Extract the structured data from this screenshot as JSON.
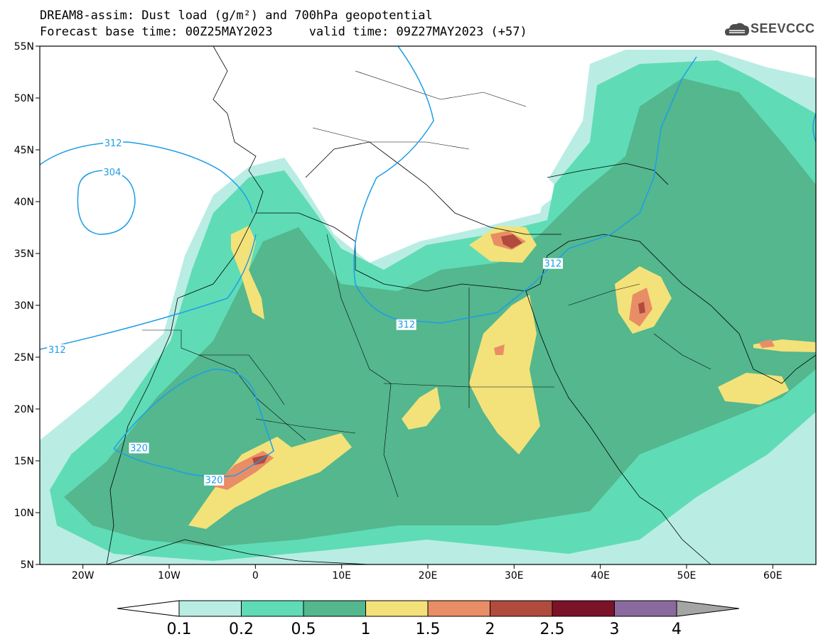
{
  "title": {
    "line1": "DREAM8-assim: Dust load (g/m²) and 700hPa geopotential",
    "line2": "Forecast base time: 00Z25MAY2023     valid time: 09Z27MAY2023 (+57)"
  },
  "logo": {
    "text": "SEEVCCC",
    "icon": "cloud-icon"
  },
  "axes": {
    "x_ticks": [
      "20W",
      "10W",
      "0",
      "10E",
      "20E",
      "30E",
      "40E",
      "50E",
      "60E"
    ],
    "x_tick_values": [
      -20,
      -10,
      0,
      10,
      20,
      30,
      40,
      50,
      60
    ],
    "y_ticks": [
      "55N",
      "50N",
      "45N",
      "40N",
      "35N",
      "30N",
      "25N",
      "20N",
      "15N",
      "10N",
      "5N"
    ],
    "y_tick_values": [
      55,
      50,
      45,
      40,
      35,
      30,
      25,
      20,
      15,
      10,
      5
    ],
    "lon_range": [
      -25,
      65
    ],
    "lat_range": [
      5,
      55
    ]
  },
  "colorbar": {
    "labels": [
      "0.1",
      "0.2",
      "0.5",
      "1",
      "1.5",
      "2",
      "2.5",
      "3",
      "4"
    ],
    "colors": [
      "#b9ede4",
      "#5fdcb5",
      "#54b78e",
      "#f3e27a",
      "#e98d66",
      "#b04b3e",
      "#7a1228",
      "#8a6a9e",
      "#a5a5a5"
    ]
  },
  "contours": [
    {
      "label": "312",
      "lon": -16.5,
      "lat": 45.6
    },
    {
      "label": "304",
      "lon": -16.6,
      "lat": 42.8
    },
    {
      "label": "312",
      "lon": 34.5,
      "lat": 34.0
    },
    {
      "label": "312",
      "lon": 17.5,
      "lat": 28.1
    },
    {
      "label": "312",
      "lon": -23.0,
      "lat": 25.7
    },
    {
      "label": "320",
      "lon": -13.5,
      "lat": 16.2
    },
    {
      "label": "320",
      "lon": -4.8,
      "lat": 13.1
    }
  ]
}
